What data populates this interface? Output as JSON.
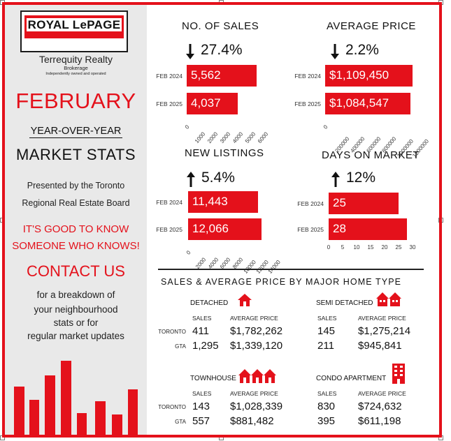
{
  "brand": {
    "logo_text": "ROYAL LePAGE",
    "company": "Terrequity Realty",
    "subtitle": "Brokerage",
    "tagline": "Independently owned and operated"
  },
  "sidebar": {
    "month": "FEBRUARY",
    "yoy": "YEAR-OVER-YEAR",
    "market_stats": "MARKET STATS",
    "presented_line1": "Presented by the Toronto",
    "presented_line2": "Regional Real Estate Board",
    "slogan_line1": "IT'S GOOD TO KNOW",
    "slogan_line2": "SOMEONE WHO KNOWS!",
    "contact": "CONTACT US",
    "breakdown_line1": "for a breakdown of",
    "breakdown_line2": "your neighbourhood",
    "breakdown_line3": "stats or for",
    "breakdown_line4": "regular market updates"
  },
  "colors": {
    "accent": "#e4111b",
    "sidebar_bg": "#e9e9e9",
    "text": "#111111"
  },
  "chart_data": [
    {
      "type": "bar",
      "title": "NO. OF SALES",
      "change": "27.4%",
      "direction": "down",
      "categories": [
        "FEB 2024",
        "FEB 2025"
      ],
      "values": [
        5562,
        4037
      ],
      "value_labels": [
        "5,562",
        "4,037"
      ],
      "xlim": [
        0,
        6000
      ],
      "ticks": [
        "0",
        "1000",
        "2000",
        "3000",
        "4000",
        "5000",
        "6000"
      ]
    },
    {
      "type": "bar",
      "title": "AVERAGE PRICE",
      "change": "2.2%",
      "direction": "down",
      "categories": [
        "FEB 2024",
        "FEB 2025"
      ],
      "values": [
        1109450,
        1084547
      ],
      "value_labels": [
        "$1,109,450",
        "$1,084,547"
      ],
      "xlim": [
        0,
        1200000
      ],
      "ticks": [
        "0",
        "200000",
        "400000",
        "600000",
        "800000",
        "1000000",
        "1200000"
      ]
    },
    {
      "type": "bar",
      "title": "NEW LISTINGS",
      "change": "5.4%",
      "direction": "up",
      "categories": [
        "FEB 2024",
        "FEB 2025"
      ],
      "values": [
        11443,
        12066
      ],
      "value_labels": [
        "11,443",
        "12,066"
      ],
      "xlim": [
        0,
        14000
      ],
      "ticks": [
        "0",
        "2000",
        "4000",
        "6000",
        "8000",
        "10000",
        "12000",
        "14000"
      ]
    },
    {
      "type": "bar",
      "title": "DAYS ON MARKET",
      "change": "12%",
      "direction": "up",
      "categories": [
        "FEB 2024",
        "FEB 2025"
      ],
      "values": [
        25,
        28
      ],
      "value_labels": [
        "25",
        "28"
      ],
      "xlim": [
        0,
        30
      ],
      "ticks": [
        "0",
        "5",
        "10",
        "15",
        "20",
        "25",
        "30"
      ]
    }
  ],
  "home_types": {
    "section_title": "SALES & AVERAGE PRICE BY MAJOR HOME TYPE",
    "sales_header": "SALES",
    "price_header": "AVERAGE PRICE",
    "row_toronto": "TORONTO",
    "row_gta": "GTA",
    "detached": {
      "title": "DETACHED",
      "toronto_sales": "411",
      "toronto_price": "$1,782,262",
      "gta_sales": "1,295",
      "gta_price": "$1,339,120"
    },
    "semi": {
      "title": "SEMI DETACHED",
      "toronto_sales": "145",
      "toronto_price": "$1,275,214",
      "gta_sales": "211",
      "gta_price": "$945,841"
    },
    "townhouse": {
      "title": "TOWNHOUSE",
      "toronto_sales": "143",
      "toronto_price": "$1,028,339",
      "gta_sales": "557",
      "gta_price": "$881,482"
    },
    "condo": {
      "title": "CONDO APARTMENT",
      "toronto_sales": "830",
      "toronto_price": "$724,632",
      "gta_sales": "395",
      "gta_price": "$611,198"
    }
  }
}
